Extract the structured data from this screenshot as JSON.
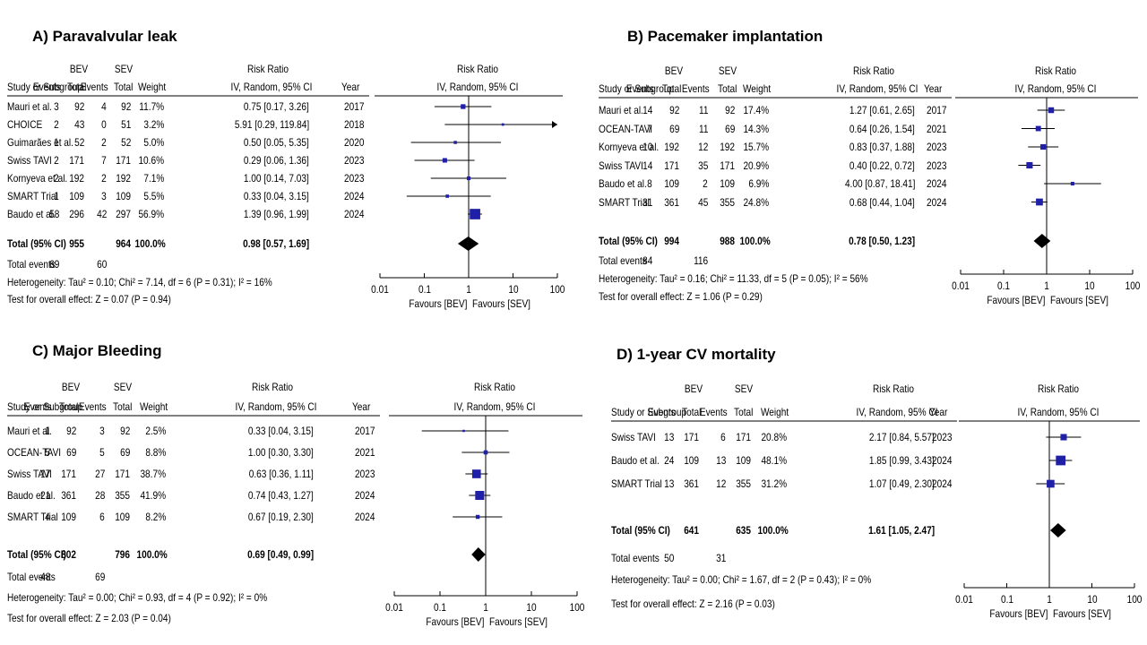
{
  "header": {
    "bev": "BEV",
    "sev": "SEV",
    "risk_ratio": "Risk Ratio",
    "study_col": "Study or Subgroup",
    "events": "Events",
    "total": "Total",
    "weight": "Weight",
    "method": "IV, Random, 95% CI",
    "year": "Year",
    "total_label": "Total (95% CI)",
    "total_events_label": "Total events",
    "favours_bev": "Favours [BEV]",
    "favours_sev": "Favours [SEV]"
  },
  "chart_data": [
    {
      "type": "forest",
      "title": "A) Paravalvular  leak",
      "axis": {
        "scale": "log",
        "range": [
          0.01,
          100
        ],
        "ticks": [
          "0.01",
          "0.1",
          "1",
          "10",
          "100"
        ]
      },
      "studies": [
        {
          "name": "Mauri et al.",
          "bev_events": "3",
          "bev_total": "92",
          "sev_events": "4",
          "sev_total": "92",
          "weight": "11.7%",
          "ci_text": "0.75 [0.17, 3.26]",
          "year": "2017",
          "rr": 0.75,
          "lo": 0.17,
          "hi": 3.26,
          "w": 11.7
        },
        {
          "name": "CHOICE",
          "bev_events": "2",
          "bev_total": "43",
          "sev_events": "0",
          "sev_total": "51",
          "weight": "3.2%",
          "ci_text": "5.91 [0.29, 119.84]",
          "year": "2018",
          "rr": 5.91,
          "lo": 0.29,
          "hi": 119.84,
          "w": 3.2
        },
        {
          "name": "Guimarães et al.",
          "bev_events": "1",
          "bev_total": "52",
          "sev_events": "2",
          "sev_total": "52",
          "weight": "5.0%",
          "ci_text": "0.50 [0.05, 5.35]",
          "year": "2020",
          "rr": 0.5,
          "lo": 0.05,
          "hi": 5.35,
          "w": 5.0
        },
        {
          "name": "Swiss TAVI",
          "bev_events": "2",
          "bev_total": "171",
          "sev_events": "7",
          "sev_total": "171",
          "weight": "10.6%",
          "ci_text": "0.29 [0.06, 1.36]",
          "year": "2023",
          "rr": 0.29,
          "lo": 0.06,
          "hi": 1.36,
          "w": 10.6
        },
        {
          "name": "Kornyeva et al.",
          "bev_events": "2",
          "bev_total": "192",
          "sev_events": "2",
          "sev_total": "192",
          "weight": "7.1%",
          "ci_text": "1.00 [0.14, 7.03]",
          "year": "2023",
          "rr": 1.0,
          "lo": 0.14,
          "hi": 7.03,
          "w": 7.1
        },
        {
          "name": "SMART Trial",
          "bev_events": "1",
          "bev_total": "109",
          "sev_events": "3",
          "sev_total": "109",
          "weight": "5.5%",
          "ci_text": "0.33 [0.04, 3.15]",
          "year": "2024",
          "rr": 0.33,
          "lo": 0.04,
          "hi": 3.15,
          "w": 5.5
        },
        {
          "name": "Baudo et al.",
          "bev_events": "58",
          "bev_total": "296",
          "sev_events": "42",
          "sev_total": "297",
          "weight": "56.9%",
          "ci_text": "1.39 [0.96, 1.99]",
          "year": "2024",
          "rr": 1.39,
          "lo": 0.96,
          "hi": 1.99,
          "w": 56.9
        }
      ],
      "total": {
        "bev_total": "955",
        "sev_total": "964",
        "weight": "100.0%",
        "ci_text": "0.98 [0.57, 1.69]",
        "rr": 0.98,
        "lo": 0.57,
        "hi": 1.69
      },
      "total_events": {
        "bev": "69",
        "sev": "60"
      },
      "heterogeneity": "Heterogeneity: Tau² = 0.10; Chi² = 7.14, df = 6 (P = 0.31); I² = 16%",
      "overall_effect": "Test for overall effect: Z = 0.07 (P = 0.94)"
    },
    {
      "type": "forest",
      "title": "B) Pacemaker implantation",
      "axis": {
        "scale": "log",
        "range": [
          0.01,
          100
        ],
        "ticks": [
          "0.01",
          "0.1",
          "1",
          "10",
          "100"
        ]
      },
      "studies": [
        {
          "name": "Mauri et al.",
          "bev_events": "14",
          "bev_total": "92",
          "sev_events": "11",
          "sev_total": "92",
          "weight": "17.4%",
          "ci_text": "1.27 [0.61, 2.65]",
          "year": "2017",
          "rr": 1.27,
          "lo": 0.61,
          "hi": 2.65,
          "w": 17.4
        },
        {
          "name": "OCEAN-TAVI",
          "bev_events": "7",
          "bev_total": "69",
          "sev_events": "11",
          "sev_total": "69",
          "weight": "14.3%",
          "ci_text": "0.64 [0.26, 1.54]",
          "year": "2021",
          "rr": 0.64,
          "lo": 0.26,
          "hi": 1.54,
          "w": 14.3
        },
        {
          "name": "Kornyeva et al.",
          "bev_events": "10",
          "bev_total": "192",
          "sev_events": "12",
          "sev_total": "192",
          "weight": "15.7%",
          "ci_text": "0.83 [0.37, 1.88]",
          "year": "2023",
          "rr": 0.83,
          "lo": 0.37,
          "hi": 1.88,
          "w": 15.7
        },
        {
          "name": "Swiss TAVI",
          "bev_events": "14",
          "bev_total": "171",
          "sev_events": "35",
          "sev_total": "171",
          "weight": "20.9%",
          "ci_text": "0.40 [0.22, 0.72]",
          "year": "2023",
          "rr": 0.4,
          "lo": 0.22,
          "hi": 0.72,
          "w": 20.9
        },
        {
          "name": "Baudo et al.",
          "bev_events": "8",
          "bev_total": "109",
          "sev_events": "2",
          "sev_total": "109",
          "weight": "6.9%",
          "ci_text": "4.00 [0.87, 18.41]",
          "year": "2024",
          "rr": 4.0,
          "lo": 0.87,
          "hi": 18.41,
          "w": 6.9
        },
        {
          "name": "SMART Trial",
          "bev_events": "31",
          "bev_total": "361",
          "sev_events": "45",
          "sev_total": "355",
          "weight": "24.8%",
          "ci_text": "0.68 [0.44, 1.04]",
          "year": "2024",
          "rr": 0.68,
          "lo": 0.44,
          "hi": 1.04,
          "w": 24.8
        }
      ],
      "total": {
        "bev_total": "994",
        "sev_total": "988",
        "weight": "100.0%",
        "ci_text": "0.78 [0.50, 1.23]",
        "rr": 0.78,
        "lo": 0.5,
        "hi": 1.23
      },
      "total_events": {
        "bev": "84",
        "sev": "116"
      },
      "heterogeneity": "Heterogeneity: Tau² = 0.16; Chi² = 11.33, df = 5 (P = 0.05); I² = 56%",
      "overall_effect": "Test for overall effect: Z = 1.06 (P = 0.29)"
    },
    {
      "type": "forest",
      "title": "C) Major Bleeding",
      "axis": {
        "scale": "log",
        "range": [
          0.01,
          100
        ],
        "ticks": [
          "0.01",
          "0.1",
          "1",
          "10",
          "100"
        ]
      },
      "studies": [
        {
          "name": "Mauri et al.",
          "bev_events": "1",
          "bev_total": "92",
          "sev_events": "3",
          "sev_total": "92",
          "weight": "2.5%",
          "ci_text": "0.33 [0.04, 3.15]",
          "year": "2017",
          "rr": 0.33,
          "lo": 0.04,
          "hi": 3.15,
          "w": 2.5
        },
        {
          "name": "OCEAN-TAVI",
          "bev_events": "5",
          "bev_total": "69",
          "sev_events": "5",
          "sev_total": "69",
          "weight": "8.8%",
          "ci_text": "1.00 [0.30, 3.30]",
          "year": "2021",
          "rr": 1.0,
          "lo": 0.3,
          "hi": 3.3,
          "w": 8.8
        },
        {
          "name": "Swiss TAVI",
          "bev_events": "17",
          "bev_total": "171",
          "sev_events": "27",
          "sev_total": "171",
          "weight": "38.7%",
          "ci_text": "0.63 [0.36, 1.11]",
          "year": "2023",
          "rr": 0.63,
          "lo": 0.36,
          "hi": 1.11,
          "w": 38.7
        },
        {
          "name": "Baudo et al.",
          "bev_events": "21",
          "bev_total": "361",
          "sev_events": "28",
          "sev_total": "355",
          "weight": "41.9%",
          "ci_text": "0.74 [0.43, 1.27]",
          "year": "2024",
          "rr": 0.74,
          "lo": 0.43,
          "hi": 1.27,
          "w": 41.9
        },
        {
          "name": "SMART Trial",
          "bev_events": "4",
          "bev_total": "109",
          "sev_events": "6",
          "sev_total": "109",
          "weight": "8.2%",
          "ci_text": "0.67 [0.19, 2.30]",
          "year": "2024",
          "rr": 0.67,
          "lo": 0.19,
          "hi": 2.3,
          "w": 8.2
        }
      ],
      "total": {
        "bev_total": "802",
        "sev_total": "796",
        "weight": "100.0%",
        "ci_text": "0.69 [0.49, 0.99]",
        "rr": 0.69,
        "lo": 0.49,
        "hi": 0.99
      },
      "total_events": {
        "bev": "48",
        "sev": "69"
      },
      "heterogeneity": "Heterogeneity: Tau² = 0.00; Chi² = 0.93, df = 4 (P = 0.92); I² = 0%",
      "overall_effect": "Test for overall effect: Z = 2.03 (P = 0.04)"
    },
    {
      "type": "forest",
      "title": "D) 1-year CV mortality",
      "axis": {
        "scale": "log",
        "range": [
          0.01,
          100
        ],
        "ticks": [
          "0.01",
          "0.1",
          "1",
          "10",
          "100"
        ]
      },
      "studies": [
        {
          "name": "Swiss TAVI",
          "bev_events": "13",
          "bev_total": "171",
          "sev_events": "6",
          "sev_total": "171",
          "weight": "20.8%",
          "ci_text": "2.17 [0.84, 5.57]",
          "year": "2023",
          "rr": 2.17,
          "lo": 0.84,
          "hi": 5.57,
          "w": 20.8
        },
        {
          "name": "Baudo et al.",
          "bev_events": "24",
          "bev_total": "109",
          "sev_events": "13",
          "sev_total": "109",
          "weight": "48.1%",
          "ci_text": "1.85 [0.99, 3.43]",
          "year": "2024",
          "rr": 1.85,
          "lo": 0.99,
          "hi": 3.43,
          "w": 48.1
        },
        {
          "name": "SMART Trial",
          "bev_events": "13",
          "bev_total": "361",
          "sev_events": "12",
          "sev_total": "355",
          "weight": "31.2%",
          "ci_text": "1.07 [0.49, 2.30]",
          "year": "2024",
          "rr": 1.07,
          "lo": 0.49,
          "hi": 2.3,
          "w": 31.2
        }
      ],
      "total": {
        "bev_total": "641",
        "sev_total": "635",
        "weight": "100.0%",
        "ci_text": "1.61 [1.05, 2.47]",
        "rr": 1.61,
        "lo": 1.05,
        "hi": 2.47
      },
      "total_events": {
        "bev": "50",
        "sev": "31"
      },
      "heterogeneity": "Heterogeneity: Tau² = 0.00; Chi² = 1.67, df = 2 (P = 0.43); I² = 0%",
      "overall_effect": "Test for overall effect: Z = 2.16 (P = 0.03)"
    }
  ],
  "style": {
    "square_color": "#1F1FA8",
    "line_color": "#000000"
  }
}
